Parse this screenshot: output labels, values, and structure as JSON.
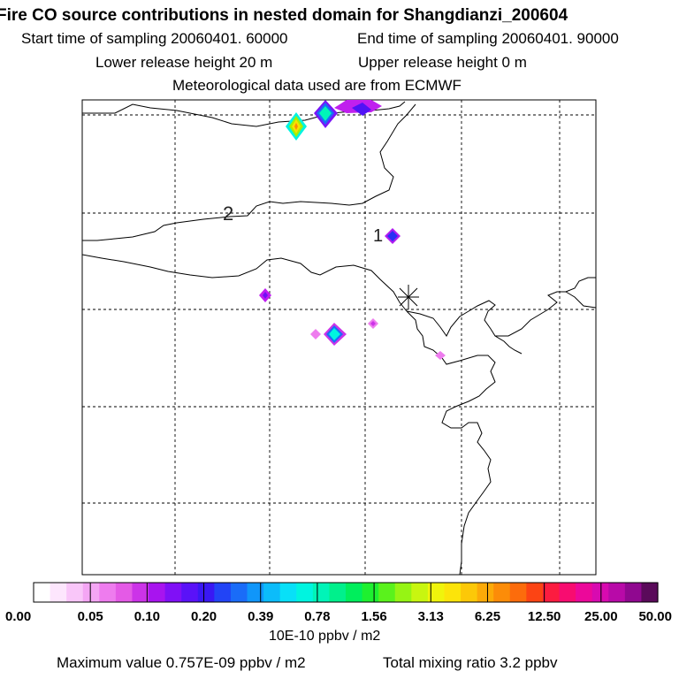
{
  "header": {
    "title": "Fire CO source contributions in nested domain for Shangdianzi_200604",
    "start_label": "Start time of sampling 20060401. 60000",
    "end_label": "End time of sampling 20060401. 90000",
    "lower_label": "Lower release height   20 m",
    "upper_label": "Upper release height    0 m",
    "met_label": "Meteorological data used are from ECMWF"
  },
  "map": {
    "region_labels": [
      "2",
      "1"
    ],
    "receptor_marker": "asterisk-icon",
    "colors": {
      "frame": "#000000",
      "grid": "#000000",
      "coast": "#000000"
    }
  },
  "chart_data": {
    "type": "heatmap",
    "title": "Fire CO source contributions in nested domain for Shangdianzi_200604",
    "colorbar": {
      "tick_labels": [
        "0.00",
        "0.05",
        "0.10",
        "0.20",
        "0.39",
        "0.78",
        "1.56",
        "3.13",
        "6.25",
        "12.50",
        "25.00",
        "50.00"
      ],
      "unit": "10E-10 ppbv / m2",
      "colors": [
        "#ffffff",
        "#fde6fd",
        "#f9c6f9",
        "#f4a6f4",
        "#ee7cee",
        "#e45ae6",
        "#cc33e8",
        "#a814ef",
        "#8010f6",
        "#5a12f8",
        "#3a18f4",
        "#2244f6",
        "#1a6cf8",
        "#1096fa",
        "#0cbcfa",
        "#08e0f8",
        "#00f4e0",
        "#00f4b8",
        "#00f08c",
        "#00ee5c",
        "#1ef030",
        "#5af21c",
        "#96f414",
        "#c8f610",
        "#f0f40c",
        "#fce40a",
        "#fcc808",
        "#fcaa08",
        "#fc8c08",
        "#fc6c0c",
        "#fc4414",
        "#fc1c40",
        "#f80c70",
        "#ec089a",
        "#d80ab0",
        "#b80aa8",
        "#900890",
        "#5a0a5a"
      ]
    },
    "sources": [
      {
        "label": "fire hotspot",
        "value_level": "3.13"
      },
      {
        "label": "fire hotspot",
        "value_level": "0.78"
      },
      {
        "label": "fire hotspot",
        "value_level": "0.10"
      },
      {
        "label": "fire hotspot",
        "value_level": "0.10"
      },
      {
        "label": "fire hotspot",
        "value_level": "0.05"
      },
      {
        "label": "fire hotspot",
        "value_level": "0.39"
      }
    ]
  },
  "footer": {
    "max_label": "Maximum value  0.757E-09 ppbv / m2",
    "total_label": "Total mixing ratio       3.2 ppbv"
  }
}
